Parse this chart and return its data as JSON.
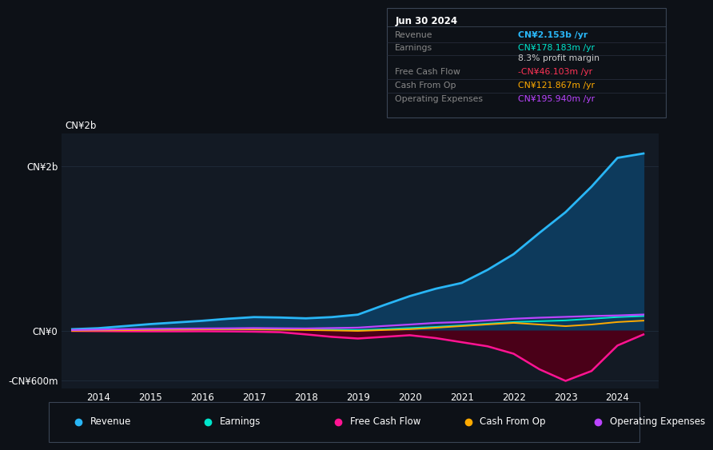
{
  "bg_color": "#0d1117",
  "plot_bg_color": "#131a24",
  "grid_color": "#1e2a38",
  "title_box": {
    "date": "Jun 30 2024",
    "rows": [
      {
        "label": "Revenue",
        "value": "CN¥2.153b /yr",
        "value_color": "#29b6f6"
      },
      {
        "label": "Earnings",
        "value": "CN¥178.183m /yr",
        "value_color": "#00e5cc"
      },
      {
        "label": "",
        "value": "8.3% profit margin",
        "value_color": "#cccccc"
      },
      {
        "label": "Free Cash Flow",
        "value": "-CN¥46.103m /yr",
        "value_color": "#ff3355"
      },
      {
        "label": "Cash From Op",
        "value": "CN¥121.867m /yr",
        "value_color": "#ffaa00"
      },
      {
        "label": "Operating Expenses",
        "value": "CN¥195.940m /yr",
        "value_color": "#bb44ff"
      }
    ]
  },
  "years": [
    2013.5,
    2014,
    2014.5,
    2015,
    2015.5,
    2016,
    2016.5,
    2017,
    2017.5,
    2018,
    2018.5,
    2019,
    2019.5,
    2020,
    2020.5,
    2021,
    2021.5,
    2022,
    2022.5,
    2023,
    2023.5,
    2024,
    2024.5
  ],
  "revenue": [
    18,
    30,
    55,
    80,
    100,
    120,
    145,
    165,
    160,
    150,
    165,
    195,
    310,
    420,
    510,
    580,
    740,
    930,
    1190,
    1440,
    1750,
    2100,
    2153
  ],
  "earnings": [
    2,
    4,
    7,
    10,
    13,
    16,
    18,
    20,
    18,
    16,
    13,
    7,
    18,
    32,
    46,
    64,
    85,
    105,
    115,
    125,
    145,
    165,
    178
  ],
  "free_cash_flow": [
    -3,
    -5,
    -7,
    -8,
    -8,
    -7,
    -9,
    -12,
    -18,
    -45,
    -75,
    -95,
    -75,
    -55,
    -90,
    -140,
    -190,
    -280,
    -470,
    -610,
    -490,
    -180,
    -46
  ],
  "cash_from_op": [
    -2,
    3,
    6,
    10,
    13,
    16,
    18,
    16,
    13,
    8,
    3,
    -3,
    8,
    18,
    36,
    56,
    76,
    95,
    75,
    55,
    75,
    105,
    122
  ],
  "operating_exp": [
    8,
    13,
    18,
    22,
    25,
    27,
    29,
    32,
    29,
    27,
    32,
    37,
    57,
    75,
    95,
    105,
    125,
    145,
    158,
    168,
    178,
    185,
    196
  ],
  "revenue_color": "#29b6f6",
  "earnings_color": "#00e5cc",
  "fcf_color": "#ff1493",
  "cashop_color": "#ffaa00",
  "opex_color": "#bb44ff",
  "revenue_fill": "#0d3a5c",
  "fcf_fill": "#4a0018",
  "ylim_min": -700,
  "ylim_max": 2400,
  "ytick_vals": [
    0,
    2000
  ],
  "ytick_labels": [
    "CN¥0",
    "CN¥2b"
  ],
  "ytick_neg_val": -600,
  "ytick_neg_label": "-CN¥600m",
  "top_label": "CN¥2b",
  "xlabel_years": [
    2014,
    2015,
    2016,
    2017,
    2018,
    2019,
    2020,
    2021,
    2022,
    2023,
    2024
  ],
  "xlim_min": 2013.3,
  "xlim_max": 2024.8,
  "legend_items": [
    {
      "label": "Revenue",
      "color": "#29b6f6"
    },
    {
      "label": "Earnings",
      "color": "#00e5cc"
    },
    {
      "label": "Free Cash Flow",
      "color": "#ff1493"
    },
    {
      "label": "Cash From Op",
      "color": "#ffaa00"
    },
    {
      "label": "Operating Expenses",
      "color": "#bb44ff"
    }
  ]
}
